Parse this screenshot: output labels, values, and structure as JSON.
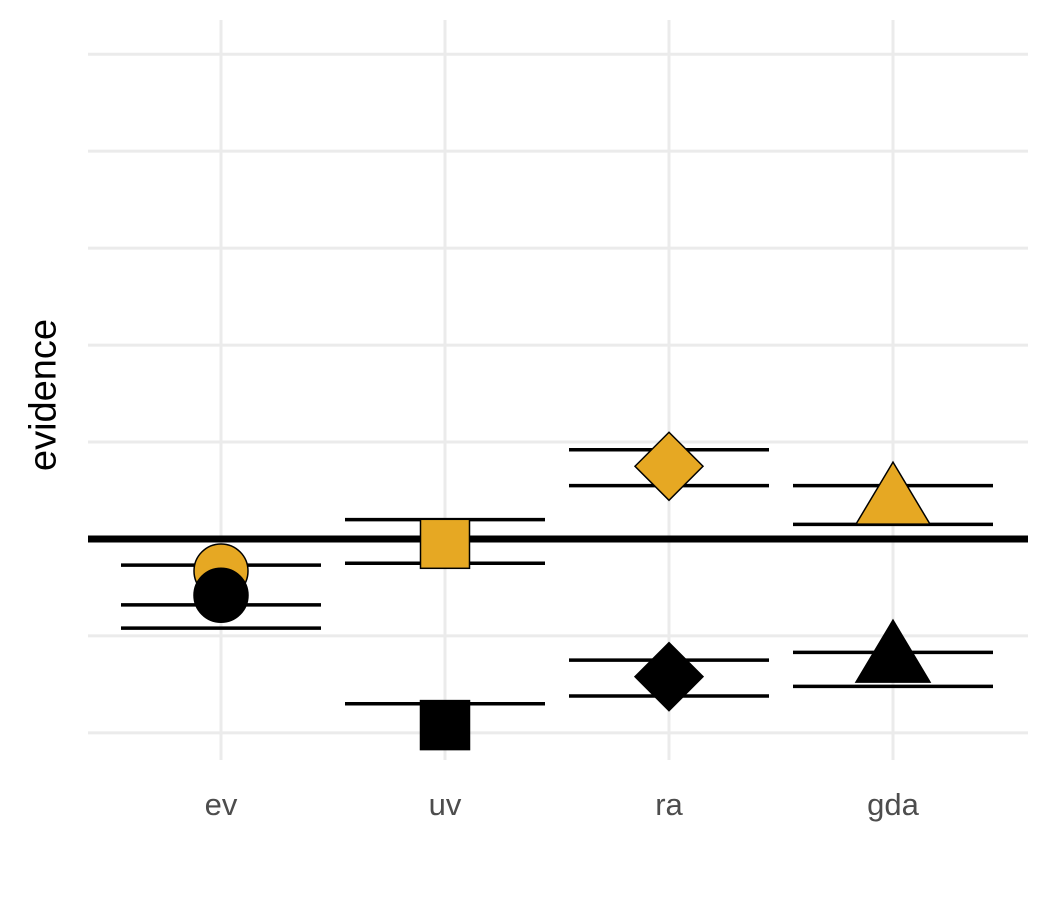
{
  "chart_data": {
    "type": "scatter",
    "ylabel": "evidence",
    "xlabel": "",
    "categories": [
      "ev",
      "uv",
      "ra",
      "gda"
    ],
    "ylim": [
      -2.2,
      5.0
    ],
    "ygrid_major": [
      -2,
      -1,
      0,
      1,
      2,
      3,
      4,
      5
    ],
    "reference_line": 0,
    "grid": true,
    "legend": "none",
    "colors": {
      "gold": "#E6A823",
      "black": "#000000"
    },
    "shapes": {
      "ev": "circle",
      "uv": "square",
      "ra": "diamond",
      "gda": "triangle"
    },
    "series": [
      {
        "color": "gold",
        "points": [
          {
            "category": "ev",
            "value": -0.33,
            "bands": [
              -0.27,
              -0.92
            ]
          },
          {
            "category": "uv",
            "value": -0.05,
            "bands": [
              0.2,
              -0.25
            ]
          },
          {
            "category": "ra",
            "value": 0.75,
            "bands": [
              0.92,
              0.55
            ]
          },
          {
            "category": "gda",
            "value": 0.38,
            "bands": [
              0.55,
              0.15
            ]
          }
        ]
      },
      {
        "color": "black",
        "points": [
          {
            "category": "ev",
            "value": -0.58,
            "bands": [
              -0.68
            ]
          },
          {
            "category": "uv",
            "value": -1.92,
            "bands": [
              -1.7
            ]
          },
          {
            "category": "ra",
            "value": -1.42,
            "bands": [
              -1.25,
              -1.62
            ]
          },
          {
            "category": "gda",
            "value": -1.25,
            "bands": [
              -1.17,
              -1.52
            ]
          }
        ]
      }
    ]
  }
}
